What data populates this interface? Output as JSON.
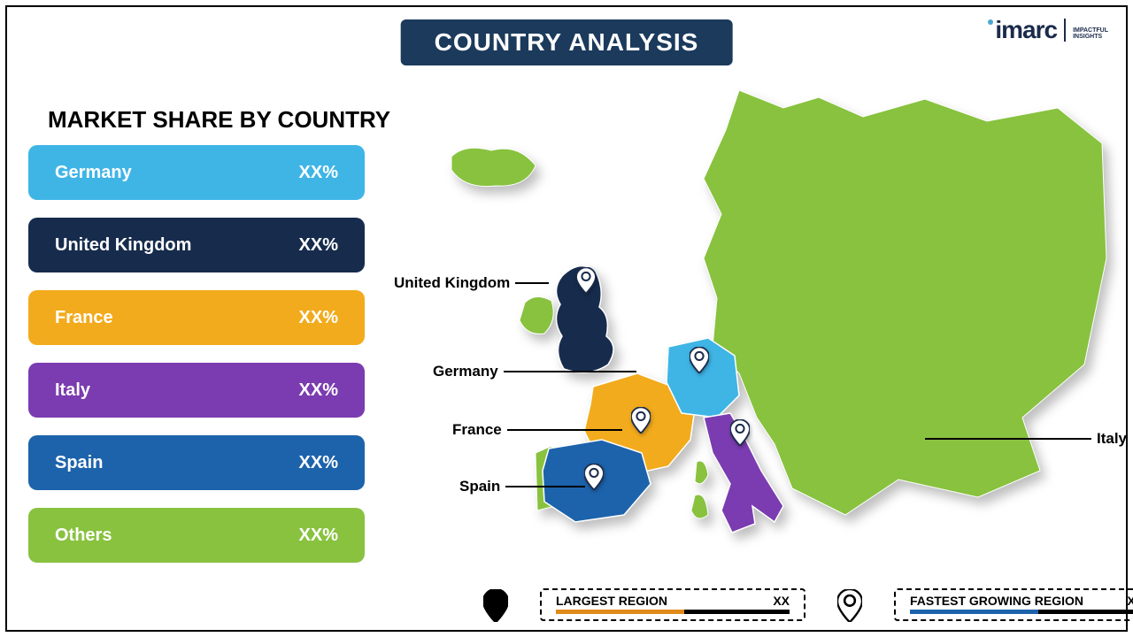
{
  "title": "COUNTRY ANALYSIS",
  "title_bg": "#1b3a5c",
  "logo": {
    "text": "imarc",
    "tag1": "IMPACTFUL",
    "tag2": "INSIGHTS",
    "dot_color": "#4aa8cf",
    "text_color": "#1b2b4b"
  },
  "share_title": "MARKET SHARE BY COUNTRY",
  "bars": [
    {
      "label": "Germany",
      "value": "XX%",
      "color": "#3fb5e6"
    },
    {
      "label": "United Kingdom",
      "value": "XX%",
      "color": "#172c4d"
    },
    {
      "label": "France",
      "value": "XX%",
      "color": "#f2ab1d"
    },
    {
      "label": "Italy",
      "value": "XX%",
      "color": "#7a3cb0"
    },
    {
      "label": "Spain",
      "value": "XX%",
      "color": "#1d63ab"
    },
    {
      "label": "Others",
      "value": "XX%",
      "color": "#88c23f"
    }
  ],
  "map": {
    "others_color": "#88c23f",
    "stroke": "#ffffff",
    "countries": {
      "uk": {
        "color": "#172c4d",
        "label": "United Kingdom"
      },
      "germany": {
        "color": "#3fb5e6",
        "label": "Germany"
      },
      "france": {
        "color": "#f2ab1d",
        "label": "France"
      },
      "italy": {
        "color": "#7a3cb0",
        "label": "Italy"
      },
      "spain": {
        "color": "#1d63ab",
        "label": "Spain"
      }
    }
  },
  "legend": {
    "largest": {
      "label": "LARGEST REGION",
      "value": "XX",
      "underline": "#e08a1a",
      "pin_fill": "#000000"
    },
    "fastest": {
      "label": "FASTEST GROWING REGION",
      "value": "XX",
      "underline": "#1d63ab",
      "pin_fill": "#ffffff"
    }
  }
}
